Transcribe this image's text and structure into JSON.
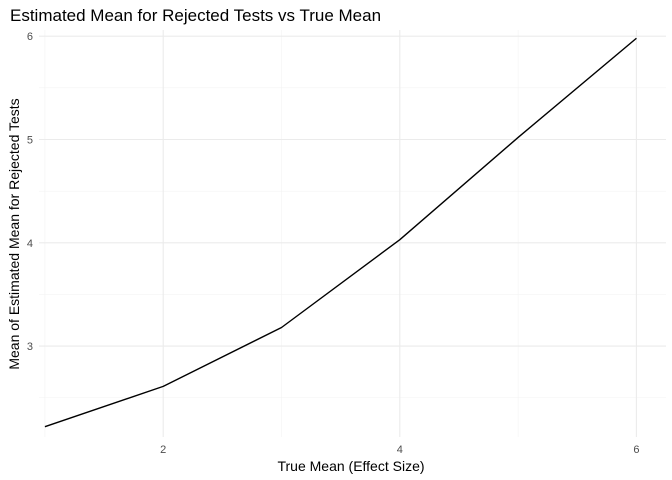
{
  "chart_data": {
    "type": "line",
    "title": "Estimated Mean for Rejected Tests vs True Mean",
    "xlabel": "True Mean (Effect Size)",
    "ylabel": "Mean of Estimated Mean for Rejected Tests",
    "x": [
      1,
      2,
      3,
      4,
      5,
      6
    ],
    "series": [
      {
        "values": [
          2.22,
          2.61,
          3.18,
          4.03,
          5.02,
          5.98
        ]
      }
    ],
    "xlim": [
      0.95,
      6.25
    ],
    "ylim": [
      2.12,
      6.06
    ],
    "x_ticks": [
      2,
      4,
      6
    ],
    "y_ticks": [
      3,
      4,
      5,
      6
    ],
    "x_minor_ticks": [
      1,
      3,
      5
    ],
    "y_minor_ticks": [
      2.5,
      3.5,
      4.5,
      5.5
    ],
    "grid": true,
    "legend": "none",
    "line_color": "#000000"
  }
}
